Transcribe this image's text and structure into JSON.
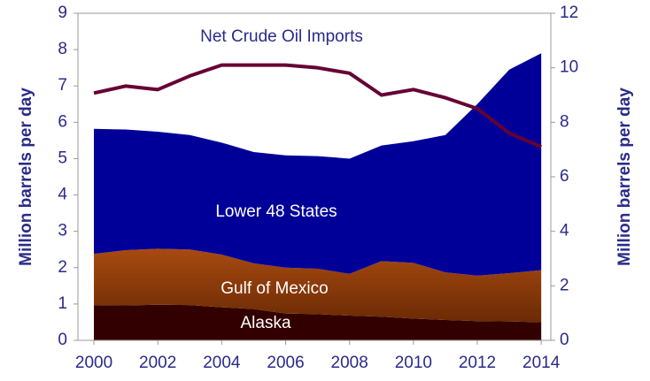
{
  "chart_data": {
    "type": "stacked_area_line",
    "ylabel": "Million barrels per day",
    "y2label": "Million barrels per day",
    "x": [
      2000,
      2001,
      2002,
      2003,
      2004,
      2005,
      2006,
      2007,
      2008,
      2009,
      2010,
      2011,
      2012,
      2013,
      2014
    ],
    "xlim": [
      1999.5,
      2014.3
    ],
    "xticks": [
      2000,
      2002,
      2004,
      2006,
      2008,
      2010,
      2012,
      2014
    ],
    "ylim": [
      0,
      9
    ],
    "yticks": [
      0,
      1,
      2,
      3,
      4,
      5,
      6,
      7,
      8,
      9
    ],
    "y2lim": [
      0,
      12
    ],
    "y2ticks": [
      0,
      2,
      4,
      6,
      8,
      10,
      12
    ],
    "series": [
      {
        "name": "Alaska",
        "color": "#330000",
        "values": [
          0.97,
          0.96,
          0.98,
          0.97,
          0.91,
          0.86,
          0.74,
          0.72,
          0.68,
          0.65,
          0.6,
          0.56,
          0.53,
          0.52,
          0.5
        ]
      },
      {
        "name": "Gulf of Mexico",
        "color": "#993300",
        "values": [
          1.41,
          1.52,
          1.54,
          1.53,
          1.45,
          1.26,
          1.26,
          1.25,
          1.15,
          1.53,
          1.53,
          1.31,
          1.25,
          1.33,
          1.43
        ]
      },
      {
        "name": "Lower 48 States",
        "color": "#000099",
        "values": [
          3.44,
          3.32,
          3.22,
          3.15,
          3.08,
          3.06,
          3.09,
          3.1,
          3.17,
          3.18,
          3.35,
          3.78,
          4.72,
          5.6,
          5.97
        ]
      },
      {
        "name": "Net Crude Oil Imports",
        "color": "#660033",
        "axis": "y2",
        "values": [
          9.07,
          9.33,
          9.2,
          9.7,
          10.1,
          10.1,
          10.1,
          10.0,
          9.8,
          9.0,
          9.2,
          8.9,
          8.5,
          7.6,
          7.1
        ]
      }
    ]
  }
}
